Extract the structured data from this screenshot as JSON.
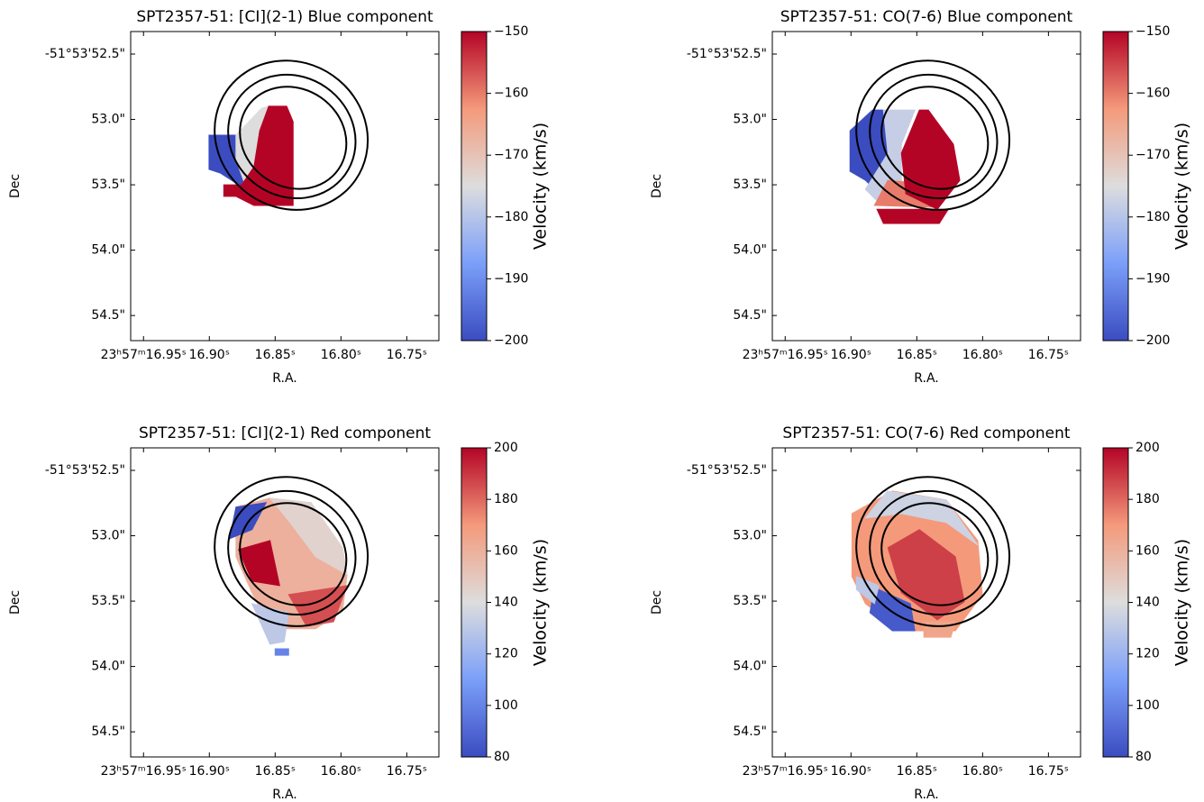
{
  "chart_data": [
    {
      "type": "heatmap",
      "title": "SPT2357-51: [CI](2-1) Blue component",
      "xlabel": "R.A.",
      "ylabel": "Dec",
      "clabel": "Velocity (km/s)",
      "xlim": [
        0,
        48
      ],
      "ylim": [
        0,
        48
      ],
      "xticks": [
        {
          "value": 2,
          "label": "23ʰ57ᵐ16.95ˢ"
        },
        {
          "value": 12.25,
          "label": "16.90ˢ"
        },
        {
          "value": 22.5,
          "label": "16.85ˢ"
        },
        {
          "value": 32.75,
          "label": "16.80ˢ"
        },
        {
          "value": 43,
          "label": "16.75ˢ"
        }
      ],
      "yticks": [
        {
          "value": 44.5,
          "label": "-51°53'52.5\""
        },
        {
          "value": 34.35,
          "label": "53.0\""
        },
        {
          "value": 24.2,
          "label": "53.5\""
        },
        {
          "value": 14.05,
          "label": "54.0\""
        },
        {
          "value": 3.9,
          "label": "54.5\""
        }
      ],
      "clim": [
        -200,
        -150
      ],
      "cticks": [
        {
          "value": -200,
          "label": "−200"
        },
        {
          "value": -190,
          "label": "−190"
        },
        {
          "value": -180,
          "label": "−180"
        },
        {
          "value": -170,
          "label": "−170"
        },
        {
          "value": -160,
          "label": "−160"
        },
        {
          "value": -150,
          "label": "−150"
        }
      ],
      "colormap": [
        "#3b4cc0",
        "#7b9ff9",
        "#dddddd",
        "#f49a7b",
        "#b40426"
      ],
      "patches": [
        {
          "value": -200,
          "points": [
            [
              12.2,
              31.9
            ],
            [
              16.4,
              31.9
            ],
            [
              19.0,
              26.3
            ],
            [
              19.6,
              23.5
            ],
            [
              16.8,
              24.2
            ],
            [
              14.0,
              26.0
            ],
            [
              12.2,
              26.6
            ]
          ]
        },
        {
          "value": -175,
          "points": [
            [
              16.4,
              31.9
            ],
            [
              20.4,
              36.1
            ],
            [
              21.5,
              36.4
            ],
            [
              20.1,
              31.9
            ],
            [
              19.2,
              26.3
            ],
            [
              20.4,
              23.2
            ],
            [
              18.2,
              23.2
            ],
            [
              16.4,
              28.1
            ]
          ]
        },
        {
          "value": -150,
          "points": [
            [
              21.5,
              36.4
            ],
            [
              24.3,
              36.4
            ],
            [
              25.3,
              34.0
            ],
            [
              25.3,
              21.0
            ],
            [
              19.2,
              21.0
            ],
            [
              16.4,
              22.4
            ],
            [
              14.5,
              22.4
            ],
            [
              14.5,
              24.2
            ],
            [
              17.3,
              24.2
            ],
            [
              19.2,
              27.0
            ],
            [
              20.1,
              32.6
            ]
          ]
        }
      ],
      "contour_color": "#000000",
      "contours": [
        {
          "cx": 25,
          "cy": 31.9,
          "rx": 12.2,
          "ry": 11.3,
          "angle": -35
        },
        {
          "cx": 25.1,
          "cy": 31.7,
          "rx": 10.2,
          "ry": 9.3,
          "angle": -35
        },
        {
          "cx": 25.3,
          "cy": 31.5,
          "rx": 8.6,
          "ry": 7.6,
          "angle": -35
        }
      ]
    },
    {
      "type": "heatmap",
      "title": "SPT2357-51: CO(7-6) Blue component",
      "xlabel": "R.A.",
      "ylabel": "Dec",
      "clabel": "Velocity (km/s)",
      "xlim": [
        0,
        48
      ],
      "ylim": [
        0,
        48
      ],
      "xticks": [
        {
          "value": 2,
          "label": "23ʰ57ᵐ16.95ˢ"
        },
        {
          "value": 12.25,
          "label": "16.90ˢ"
        },
        {
          "value": 22.5,
          "label": "16.85ˢ"
        },
        {
          "value": 32.75,
          "label": "16.80ˢ"
        },
        {
          "value": 43,
          "label": "16.75ˢ"
        }
      ],
      "yticks": [
        {
          "value": 44.5,
          "label": "-51°53'52.5\""
        },
        {
          "value": 34.35,
          "label": "53.0\""
        },
        {
          "value": 24.2,
          "label": "53.5\""
        },
        {
          "value": 14.05,
          "label": "54.0\""
        },
        {
          "value": 3.9,
          "label": "54.5\""
        }
      ],
      "clim": [
        -200,
        -150
      ],
      "cticks": [
        {
          "value": -200,
          "label": "−200"
        },
        {
          "value": -190,
          "label": "−190"
        },
        {
          "value": -180,
          "label": "−180"
        },
        {
          "value": -170,
          "label": "−170"
        },
        {
          "value": -160,
          "label": "−160"
        },
        {
          "value": -150,
          "label": "−150"
        }
      ],
      "colormap": [
        "#3b4cc0",
        "#7b9ff9",
        "#dddddd",
        "#f49a7b",
        "#b40426"
      ],
      "patches": [
        {
          "value": -200,
          "points": [
            [
              15.6,
              35.8
            ],
            [
              17.3,
              35.8
            ],
            [
              18.7,
              31.9
            ],
            [
              20.1,
              24.9
            ],
            [
              17.3,
              22.1
            ],
            [
              14.5,
              24.9
            ],
            [
              12.1,
              26.3
            ],
            [
              12.1,
              32.6
            ]
          ]
        },
        {
          "value": -178,
          "points": [
            [
              17.3,
              35.8
            ],
            [
              22.2,
              35.8
            ],
            [
              20.1,
              30.5
            ],
            [
              20.1,
              23.5
            ],
            [
              22.9,
              21.8
            ],
            [
              16.6,
              21.4
            ],
            [
              14.5,
              23.5
            ],
            [
              18.0,
              29.1
            ]
          ]
        },
        {
          "value": -160,
          "points": [
            [
              18.0,
              24.9
            ],
            [
              25.7,
              24.2
            ],
            [
              25.7,
              20.7
            ],
            [
              15.9,
              21.0
            ]
          ]
        },
        {
          "value": -150,
          "points": [
            [
              22.9,
              35.8
            ],
            [
              24.3,
              35.8
            ],
            [
              28.2,
              30.5
            ],
            [
              29.2,
              24.9
            ],
            [
              25.7,
              20.4
            ],
            [
              20.8,
              22.8
            ],
            [
              20.1,
              29.1
            ]
          ]
        },
        {
          "value": -150,
          "points": [
            [
              16.3,
              20.4
            ],
            [
              27.4,
              20.4
            ],
            [
              26.0,
              18.2
            ],
            [
              17.3,
              18.2
            ]
          ]
        }
      ],
      "contour_color": "#000000",
      "contours": [
        {
          "cx": 25,
          "cy": 31.9,
          "rx": 12.2,
          "ry": 11.3,
          "angle": -35
        },
        {
          "cx": 25.1,
          "cy": 31.7,
          "rx": 10.2,
          "ry": 9.3,
          "angle": -35
        },
        {
          "cx": 25.3,
          "cy": 31.5,
          "rx": 8.6,
          "ry": 7.6,
          "angle": -35
        }
      ]
    },
    {
      "type": "heatmap",
      "title": "SPT2357-51: [CI](2-1) Red component",
      "xlabel": "R.A.",
      "ylabel": "Dec",
      "clabel": "Velocity (km/s)",
      "xlim": [
        0,
        48
      ],
      "ylim": [
        0,
        48
      ],
      "xticks": [
        {
          "value": 2,
          "label": "23ʰ57ᵐ16.95ˢ"
        },
        {
          "value": 12.25,
          "label": "16.90ˢ"
        },
        {
          "value": 22.5,
          "label": "16.85ˢ"
        },
        {
          "value": 32.75,
          "label": "16.80ˢ"
        },
        {
          "value": 43,
          "label": "16.75ˢ"
        }
      ],
      "yticks": [
        {
          "value": 44.5,
          "label": "-51°53'52.5\""
        },
        {
          "value": 34.35,
          "label": "53.0\""
        },
        {
          "value": 24.2,
          "label": "53.5\""
        },
        {
          "value": 14.05,
          "label": "54.0\""
        },
        {
          "value": 3.9,
          "label": "54.5\""
        }
      ],
      "clim": [
        80,
        200
      ],
      "cticks": [
        80,
        100,
        120,
        140,
        160,
        180,
        200
      ],
      "colormap": [
        "#3b4cc0",
        "#7b9ff9",
        "#dddddd",
        "#f49a7b",
        "#b40426"
      ],
      "patches": [
        {
          "value": 160,
          "points": [
            [
              16.4,
              38.8
            ],
            [
              21.7,
              40.2
            ],
            [
              29.5,
              36.7
            ],
            [
              33.7,
              28.3
            ],
            [
              33.0,
              22.7
            ],
            [
              28.8,
              19.9
            ],
            [
              24.6,
              19.9
            ],
            [
              21.7,
              19.9
            ],
            [
              18.9,
              25.5
            ],
            [
              16.4,
              31.1
            ]
          ]
        },
        {
          "value": 145,
          "points": [
            [
              21.7,
              40.2
            ],
            [
              28.1,
              39.5
            ],
            [
              33.0,
              32.5
            ],
            [
              33.7,
              28.3
            ],
            [
              28.8,
              31.1
            ],
            [
              24.6,
              36.7
            ]
          ]
        },
        {
          "value": 80,
          "points": [
            [
              16.4,
              38.8
            ],
            [
              21.1,
              39.5
            ],
            [
              18.9,
              35.3
            ],
            [
              15.4,
              33.9
            ]
          ]
        },
        {
          "value": 200,
          "points": [
            [
              16.8,
              32.2
            ],
            [
              21.7,
              33.6
            ],
            [
              23.2,
              26.6
            ],
            [
              18.9,
              27.3
            ]
          ]
        },
        {
          "value": 185,
          "points": [
            [
              24.6,
              25.2
            ],
            [
              33.7,
              26.6
            ],
            [
              31.6,
              21.0
            ],
            [
              27.4,
              20.3
            ]
          ]
        },
        {
          "value": 130,
          "points": [
            [
              18.9,
              23.8
            ],
            [
              24.6,
              22.4
            ],
            [
              23.9,
              17.9
            ],
            [
              21.7,
              17.5
            ]
          ]
        },
        {
          "value": 100,
          "points": [
            [
              22.5,
              16.8
            ],
            [
              24.6,
              16.8
            ],
            [
              24.6,
              15.8
            ],
            [
              22.5,
              15.8
            ]
          ]
        }
      ],
      "contour_color": "#000000",
      "contours": [
        {
          "cx": 25,
          "cy": 31.9,
          "rx": 12.2,
          "ry": 11.3,
          "angle": -35
        },
        {
          "cx": 25.1,
          "cy": 31.7,
          "rx": 10.2,
          "ry": 9.3,
          "angle": -35
        },
        {
          "cx": 25.3,
          "cy": 31.5,
          "rx": 8.6,
          "ry": 7.6,
          "angle": -35
        }
      ]
    },
    {
      "type": "heatmap",
      "title": "SPT2357-51: CO(7-6) Red component",
      "xlabel": "R.A.",
      "ylabel": "Dec",
      "clabel": "Velocity (km/s)",
      "xlim": [
        0,
        48
      ],
      "ylim": [
        0,
        48
      ],
      "xticks": [
        {
          "value": 2,
          "label": "23ʰ57ᵐ16.95ˢ"
        },
        {
          "value": 12.25,
          "label": "16.90ˢ"
        },
        {
          "value": 22.5,
          "label": "16.85ˢ"
        },
        {
          "value": 32.75,
          "label": "16.80ˢ"
        },
        {
          "value": 43,
          "label": "16.75ˢ"
        }
      ],
      "yticks": [
        {
          "value": 44.5,
          "label": "-51°53'52.5\""
        },
        {
          "value": 34.35,
          "label": "53.0\""
        },
        {
          "value": 24.2,
          "label": "53.5\""
        },
        {
          "value": 14.05,
          "label": "54.0\""
        },
        {
          "value": 3.9,
          "label": "54.5\""
        }
      ],
      "clim": [
        80,
        200
      ],
      "cticks": [
        80,
        100,
        120,
        140,
        160,
        180,
        200
      ],
      "colormap": [
        "#3b4cc0",
        "#7b9ff9",
        "#dddddd",
        "#f49a7b",
        "#b40426"
      ],
      "patches": [
        {
          "value": 170,
          "points": [
            [
              12.4,
              37.8
            ],
            [
              18.7,
              41.3
            ],
            [
              27.1,
              39.9
            ],
            [
              32.0,
              33.6
            ],
            [
              32.7,
              25.2
            ],
            [
              28.5,
              19.6
            ],
            [
              20.1,
              19.6
            ],
            [
              14.5,
              23.8
            ],
            [
              12.4,
              28.0
            ]
          ]
        },
        {
          "value": 135,
          "points": [
            [
              17.9,
              41.3
            ],
            [
              27.1,
              39.9
            ],
            [
              32.0,
              32.9
            ],
            [
              27.1,
              36.4
            ],
            [
              20.1,
              37.8
            ],
            [
              14.5,
              37.1
            ]
          ]
        },
        {
          "value": 188,
          "points": [
            [
              18.0,
              32.5
            ],
            [
              22.9,
              35.3
            ],
            [
              28.5,
              31.1
            ],
            [
              29.9,
              24.1
            ],
            [
              25.7,
              21.3
            ],
            [
              20.1,
              25.5
            ]
          ]
        },
        {
          "value": 85,
          "points": [
            [
              15.9,
              26.3
            ],
            [
              21.5,
              23.8
            ],
            [
              22.2,
              19.6
            ],
            [
              18.7,
              19.6
            ],
            [
              15.2,
              22.4
            ]
          ]
        },
        {
          "value": 130,
          "points": [
            [
              13.1,
              28.0
            ],
            [
              16.6,
              26.6
            ],
            [
              15.9,
              23.8
            ],
            [
              13.1,
              26.0
            ]
          ]
        },
        {
          "value": 165,
          "points": [
            [
              23.6,
              21.0
            ],
            [
              28.5,
              21.0
            ],
            [
              27.8,
              18.6
            ],
            [
              23.6,
              18.6
            ]
          ]
        }
      ],
      "contour_color": "#000000",
      "contours": [
        {
          "cx": 25,
          "cy": 31.9,
          "rx": 12.2,
          "ry": 11.3,
          "angle": -35
        },
        {
          "cx": 25.1,
          "cy": 31.7,
          "rx": 10.2,
          "ry": 9.3,
          "angle": -35
        },
        {
          "cx": 25.3,
          "cy": 31.5,
          "rx": 8.6,
          "ry": 7.6,
          "angle": -35
        }
      ]
    }
  ]
}
